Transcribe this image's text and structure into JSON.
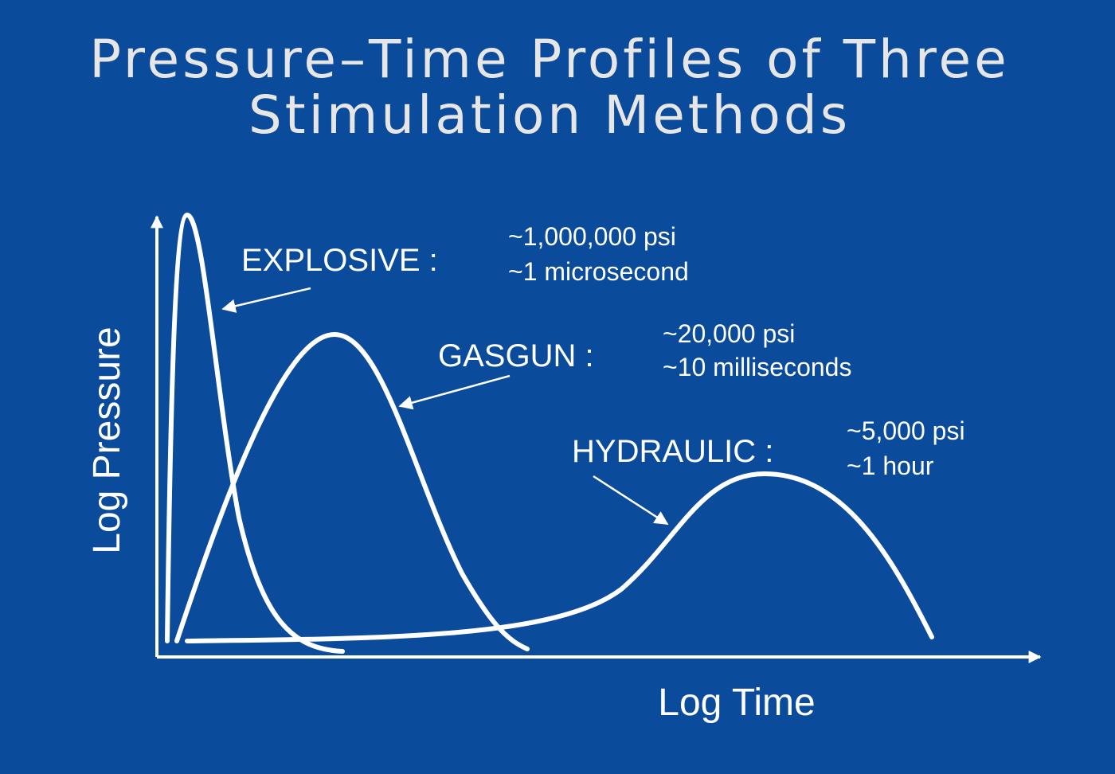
{
  "title": [
    "Pressure–Time Profiles of Three",
    "Stimulation Methods"
  ],
  "y_axis_label": "Log Pressure",
  "x_axis_label": "Log Time",
  "methods": [
    {
      "label": "EXPLOSIVE :",
      "pressure": "~1,000,000 psi",
      "duration": "~1 microsecond"
    },
    {
      "label": "GASGUN :",
      "pressure": "~20,000 psi",
      "duration": "~10 milliseconds"
    },
    {
      "label": "HYDRAULIC :",
      "pressure": "~5,000 psi",
      "duration": "~1 hour"
    }
  ]
}
